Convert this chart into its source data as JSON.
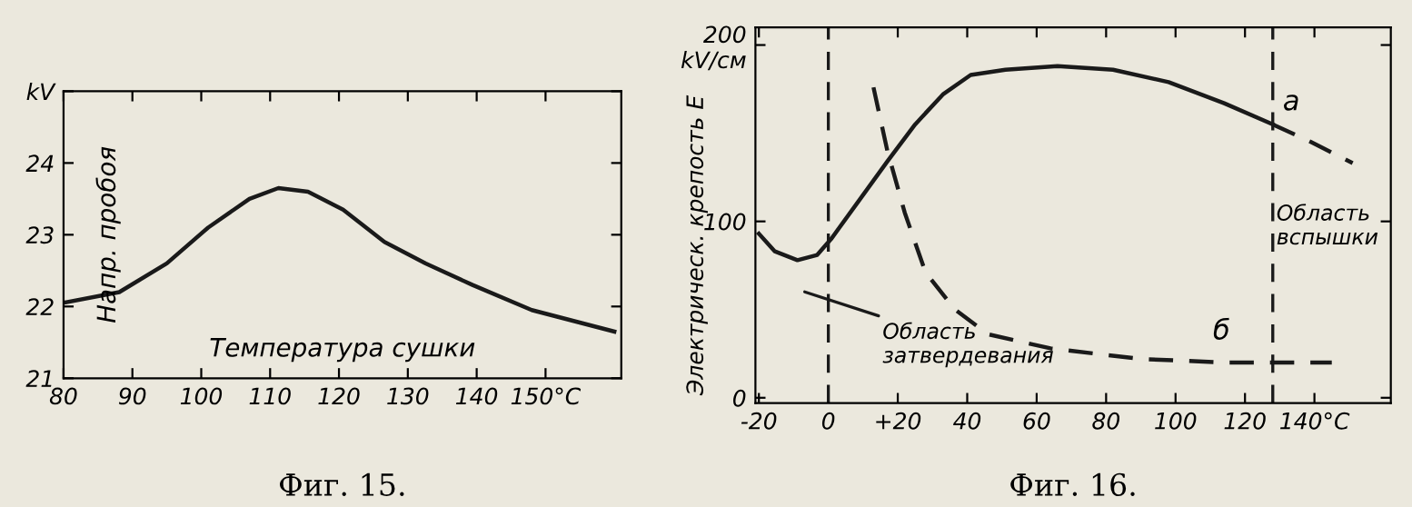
{
  "chart_data": [
    {
      "type": "line",
      "title": "Фиг. 15.",
      "ylabel": "Напр. пробоя",
      "xlabel": "Температура сушки",
      "xlim": [
        80,
        161
      ],
      "ylim": [
        21,
        25
      ],
      "xticks": [
        80,
        90,
        100,
        110,
        120,
        130,
        140,
        {
          "value": 150,
          "label": "150°C"
        }
      ],
      "yticks": [
        21,
        22,
        23,
        24,
        {
          "value": 25,
          "label": "kV"
        }
      ],
      "grid": false,
      "legend": false,
      "series": [
        {
          "color": "#1a1a1a",
          "line_style": "solid",
          "x": [
            80.4,
            88.1,
            95,
            101,
            107,
            111.2,
            115.5,
            120.6,
            126.6,
            132.6,
            139.4,
            148,
            160
          ],
          "values": [
            22.06,
            22.2,
            22.6,
            23.1,
            23.5,
            23.65,
            23.6,
            23.35,
            22.9,
            22.6,
            22.3,
            21.95,
            21.65
          ]
        }
      ]
    },
    {
      "type": "line",
      "title": "Фиг. 16.",
      "ylabel": "Электрическ. крепость E",
      "xlim": [
        -21,
        162
      ],
      "ylim": [
        -3,
        210
      ],
      "xticks": [
        -20,
        0,
        {
          "value": 20,
          "label": "+20"
        },
        40,
        60,
        80,
        100,
        120,
        {
          "value": 140,
          "label": "140°C"
        }
      ],
      "yticks": [
        0,
        100,
        {
          "value": 200,
          "label": "200\nkV/см"
        }
      ],
      "grid": false,
      "legend": false,
      "series": [
        {
          "color": "#1a1a1a",
          "line_style": "solid",
          "x": [
            -20,
            -15.4,
            -8.9,
            -3.2,
            0.8,
            8.9,
            17,
            25,
            33,
            41,
            51,
            66,
            82,
            98,
            114,
            128
          ],
          "values": [
            93,
            83,
            78,
            81,
            90,
            112,
            134,
            155,
            172,
            183,
            186,
            188,
            186,
            179,
            167,
            155
          ]
        },
        {
          "color": "#1a1a1a",
          "line_style": "dashed",
          "x": [
            128,
            139,
            151
          ],
          "values": [
            155,
            145,
            133
          ]
        },
        {
          "color": "#1a1a1a",
          "line_style": "dashed",
          "x": [
            13,
            17,
            22,
            28,
            36.5,
            46,
            64,
            90,
            114,
            145
          ],
          "values": [
            176,
            140,
            105,
            71,
            50,
            36,
            28,
            22,
            20,
            20
          ]
        }
      ],
      "ref_lines": [
        {
          "axis": "x",
          "value": 0,
          "color": "#1a1a1a",
          "line_style": "dashed"
        },
        {
          "axis": "x",
          "value": 128,
          "color": "#1a1a1a",
          "line_style": "dashed"
        }
      ],
      "annotations": [
        "а",
        "б",
        "Область\nвспышки",
        "Область\nзатвердевания"
      ]
    }
  ]
}
